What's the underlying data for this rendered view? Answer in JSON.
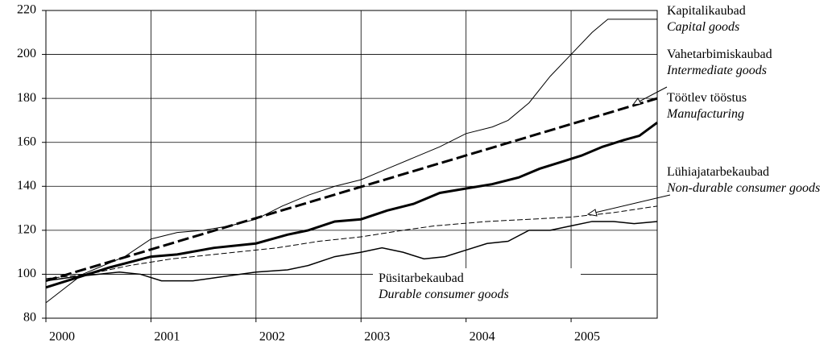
{
  "chart_data": {
    "type": "line",
    "xlim": [
      2000,
      2005.82
    ],
    "xticks": [
      2000,
      2001,
      2002,
      2003,
      2004,
      2005
    ],
    "ylim": [
      80,
      220
    ],
    "yticks": [
      80,
      100,
      120,
      140,
      160,
      180,
      200,
      220
    ],
    "grid": true,
    "series": [
      {
        "name": "Kapitalikaubad",
        "name_en": "Capital goods",
        "color": "#000000",
        "style": "solid",
        "width": 1,
        "x": [
          2000,
          2000.35,
          2000.6,
          2000.75,
          2001,
          2001.25,
          2001.5,
          2001.75,
          2002,
          2002.25,
          2002.5,
          2002.75,
          2003,
          2003.25,
          2003.5,
          2003.75,
          2004,
          2004.25,
          2004.4,
          2004.6,
          2004.8,
          2005,
          2005.2,
          2005.35,
          2005.82
        ],
        "values": [
          87,
          100,
          105,
          108,
          116,
          119,
          120,
          122,
          125,
          131,
          136,
          140,
          143,
          148,
          153,
          158,
          164,
          167,
          170,
          178,
          190,
          200,
          210,
          216,
          216
        ]
      },
      {
        "name": "Vahetarbimiskaubad",
        "name_en": "Intermediate goods",
        "color": "#000000",
        "style": "dashed",
        "width": 3,
        "x": [
          2000,
          2005.82
        ],
        "values": [
          97,
          180
        ]
      },
      {
        "name": "Töötlev tööstus",
        "name_en": "Manufacturing",
        "color": "#000000",
        "style": "solid",
        "width": 3,
        "x": [
          2000,
          2000.4,
          2000.6,
          2001,
          2001.25,
          2001.6,
          2002,
          2002.3,
          2002.5,
          2002.75,
          2003,
          2003.25,
          2003.5,
          2003.75,
          2004,
          2004.25,
          2004.5,
          2004.7,
          2004.9,
          2005.1,
          2005.3,
          2005.5,
          2005.65,
          2005.82
        ],
        "values": [
          94,
          100,
          103,
          108,
          109,
          112,
          114,
          118,
          120,
          124,
          125,
          129,
          132,
          137,
          139,
          141,
          144,
          148,
          151,
          154,
          158,
          161,
          163,
          169
        ]
      },
      {
        "name": "Lühiajatarbekaubad",
        "name_en": "Non-durable consumer goods",
        "color": "#000000",
        "style": "dashed",
        "width": 1,
        "x": [
          2000,
          2000.4,
          2000.8,
          2001.2,
          2001.8,
          2002.2,
          2002.6,
          2003,
          2003.4,
          2003.7,
          2004.2,
          2004.6,
          2005,
          2005.4,
          2005.82
        ],
        "values": [
          98,
          100,
          104,
          107,
          110,
          112,
          115,
          117,
          120,
          122,
          124,
          125,
          126,
          128,
          131
        ]
      },
      {
        "name": "Püsitarbekaubad",
        "name_en": "Durable consumer goods",
        "color": "#000000",
        "style": "solid",
        "width": 1.5,
        "x": [
          2000,
          2000.3,
          2000.7,
          2000.9,
          2001.1,
          2001.4,
          2001.7,
          2002,
          2002.3,
          2002.5,
          2002.75,
          2003,
          2003.2,
          2003.4,
          2003.6,
          2003.8,
          2004,
          2004.2,
          2004.4,
          2004.6,
          2004.8,
          2005,
          2005.2,
          2005.4,
          2005.6,
          2005.82
        ],
        "values": [
          97,
          99,
          101,
          100,
          97,
          97,
          99,
          101,
          102,
          104,
          108,
          110,
          112,
          110,
          107,
          108,
          111,
          114,
          115,
          120,
          120,
          122,
          124,
          124,
          123,
          124
        ]
      }
    ]
  }
}
